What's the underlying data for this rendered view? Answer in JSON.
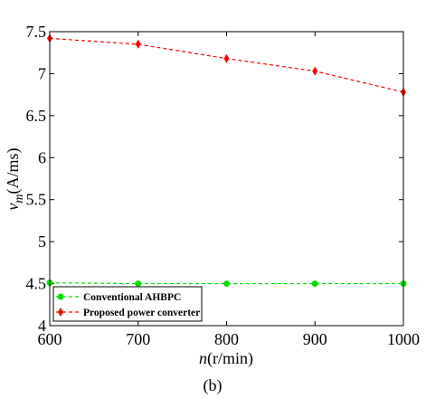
{
  "chart_data": {
    "type": "line",
    "x": [
      600,
      700,
      800,
      900,
      1000
    ],
    "xlabel": {
      "main": "n",
      "unit": "(r/min)"
    },
    "ylabel": {
      "main": "v",
      "sub": "m",
      "unit": "(A/ms)"
    },
    "xlim": [
      600,
      1000
    ],
    "ylim": [
      4,
      7.5
    ],
    "xticks": [
      "600",
      "700",
      "800",
      "900",
      "1000"
    ],
    "yticks": [
      "4",
      "4.5",
      "5",
      "5.5",
      "6",
      "6.5",
      "7",
      "7.5"
    ],
    "grid": false,
    "legend_position": "bottom-left",
    "caption": "(b)",
    "series": [
      {
        "name": "Conventional AHBPC",
        "values": [
          4.51,
          4.5,
          4.5,
          4.5,
          4.5
        ],
        "color": "#00e000",
        "marker": "circle",
        "line": "dashed"
      },
      {
        "name": "Proposed power converter",
        "values": [
          7.42,
          7.35,
          7.18,
          7.03,
          6.78
        ],
        "color": "#ff0000",
        "marker": "diamond",
        "line": "dashed"
      }
    ]
  }
}
